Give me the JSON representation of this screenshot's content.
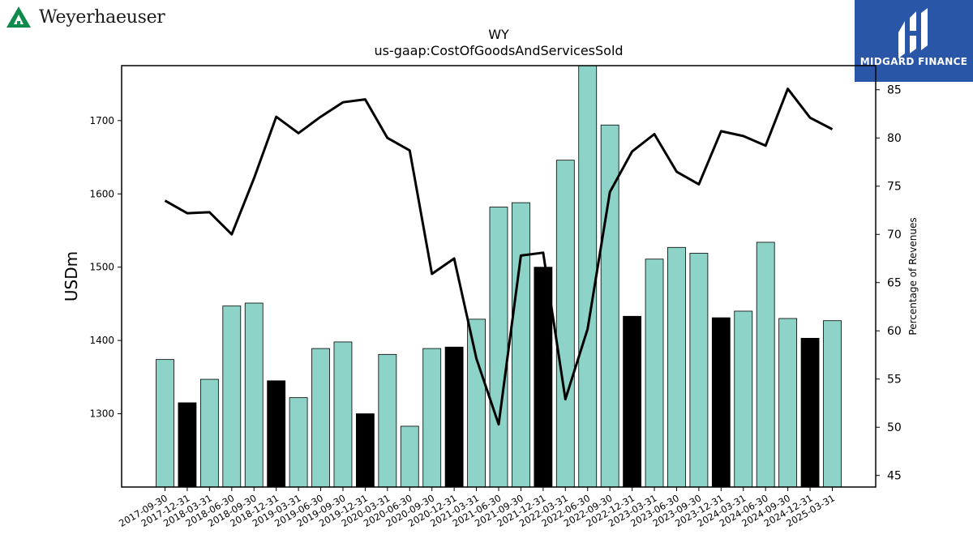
{
  "logos": {
    "left_text": "Weyerhaeuser",
    "right_text": "MIDGARD FINANCE"
  },
  "colors": {
    "bar_default": "#8dd3c7",
    "bar_highlight": "#000000",
    "line": "#000000",
    "right_logo_bg": "#2a56a8",
    "left_logo": "#0e8a4b"
  },
  "chart_data": {
    "type": "bar",
    "title": "WY",
    "subtitle": "us-gaap:CostOfGoodsAndServicesSold",
    "ylabel": "USDm",
    "y2label": "Percentage of Revenues",
    "ylim": [
      1200,
      1775
    ],
    "y2lim": [
      43.8,
      87.5
    ],
    "yticks": [
      1300,
      1400,
      1500,
      1600,
      1700
    ],
    "y2ticks": [
      45,
      50,
      55,
      60,
      65,
      70,
      75,
      80,
      85
    ],
    "grid": false,
    "categories": [
      "2017-09-30",
      "2017-12-31",
      "2018-03-31",
      "2018-06-30",
      "2018-09-30",
      "2018-12-31",
      "2019-03-31",
      "2019-06-30",
      "2019-09-30",
      "2019-12-31",
      "2020-03-31",
      "2020-06-30",
      "2020-09-30",
      "2020-12-31",
      "2021-03-31",
      "2021-06-30",
      "2021-09-30",
      "2021-12-31",
      "2022-03-31",
      "2022-06-30",
      "2022-09-30",
      "2022-12-31",
      "2023-03-31",
      "2023-06-30",
      "2023-09-30",
      "2023-12-31",
      "2024-03-31",
      "2024-06-30",
      "2024-09-30",
      "2024-12-31",
      "2025-03-31"
    ],
    "series": [
      {
        "kind": "bar",
        "values": [
          1374,
          1315,
          1347,
          1447,
          1451,
          1345,
          1322,
          1389,
          1398,
          1300,
          1381,
          1283,
          1389,
          1391,
          1429,
          1582,
          1588,
          1500,
          1646,
          1779,
          1694,
          1433,
          1511,
          1527,
          1519,
          1431,
          1440,
          1534,
          1430,
          1403,
          1427
        ],
        "highlight": [
          false,
          true,
          false,
          false,
          false,
          true,
          false,
          false,
          false,
          true,
          false,
          false,
          false,
          true,
          false,
          false,
          false,
          true,
          false,
          false,
          false,
          true,
          false,
          false,
          false,
          true,
          false,
          false,
          false,
          true,
          false
        ]
      },
      {
        "kind": "line",
        "axis": "right",
        "values": [
          73.5,
          72.2,
          72.3,
          70.0,
          75.8,
          82.2,
          80.5,
          82.2,
          83.7,
          84.0,
          80.0,
          78.7,
          65.9,
          67.5,
          57.1,
          50.3,
          67.8,
          68.1,
          52.9,
          60.2,
          74.4,
          78.6,
          80.4,
          76.5,
          75.2,
          80.7,
          80.2,
          79.2,
          85.1,
          82.1,
          80.9
        ]
      }
    ]
  }
}
